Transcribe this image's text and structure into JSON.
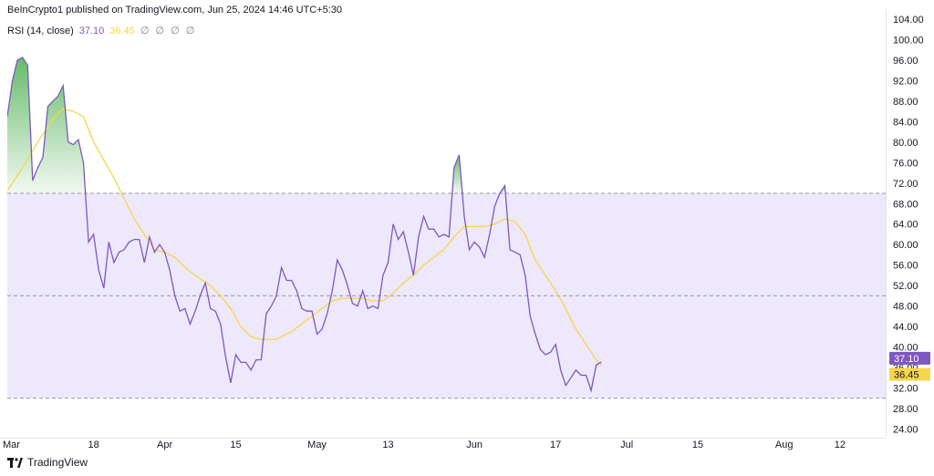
{
  "publisher": "BeInCrypto1 published on TradingView.com, Jun 25, 2024 14:46 UTC+5:30",
  "legend": {
    "indicator": "RSI (14, close)",
    "rsi_value": "37.10",
    "ma_value": "36.45",
    "extras": "∅ ∅ ∅ ∅"
  },
  "footer": {
    "brand": "TradingView"
  },
  "colors": {
    "rsi_line": "#7e57c2",
    "ma_line": "#f7d54a",
    "band_fill": "#ede8fb",
    "overbought_fill": "#4caf50",
    "rsi_badge": "#7e57c2",
    "ma_badge": "#f7d54a"
  },
  "chart_data": {
    "type": "line",
    "title": "",
    "xlabel": "",
    "ylabel": "",
    "ylim": [
      22.3,
      104
    ],
    "xlim": [
      0,
      173
    ],
    "x_unit": "days from Mar 1, 2024",
    "y_ticks": [
      "104.00",
      "100.00",
      "96.00",
      "92.00",
      "88.00",
      "84.00",
      "80.00",
      "76.00",
      "72.00",
      "68.00",
      "64.00",
      "60.00",
      "56.00",
      "52.00",
      "48.00",
      "44.00",
      "40.00",
      "36.00",
      "32.00",
      "28.00",
      "24.00"
    ],
    "x_ticks": [
      {
        "x": 0,
        "label": "Mar"
      },
      {
        "x": 17,
        "label": "18"
      },
      {
        "x": 31,
        "label": "Apr"
      },
      {
        "x": 45,
        "label": "15"
      },
      {
        "x": 61,
        "label": "May"
      },
      {
        "x": 75,
        "label": "13"
      },
      {
        "x": 92,
        "label": "Jun"
      },
      {
        "x": 108,
        "label": "17"
      },
      {
        "x": 122,
        "label": "Jul"
      },
      {
        "x": 136,
        "label": "15"
      },
      {
        "x": 153,
        "label": "Aug"
      },
      {
        "x": 164,
        "label": "12"
      }
    ],
    "levels": {
      "upper": 70,
      "middle": 50,
      "lower": 30
    },
    "series": [
      {
        "name": "RSI",
        "values": [
          [
            0,
            85
          ],
          [
            1,
            92
          ],
          [
            2,
            96
          ],
          [
            3,
            96.5
          ],
          [
            4,
            95
          ],
          [
            5,
            72.5
          ],
          [
            6,
            75
          ],
          [
            7,
            77
          ],
          [
            8,
            87
          ],
          [
            9,
            88
          ],
          [
            10,
            89
          ],
          [
            11,
            91
          ],
          [
            12,
            80
          ],
          [
            13,
            79.5
          ],
          [
            14,
            80.5
          ],
          [
            15,
            76
          ],
          [
            16,
            60.5
          ],
          [
            17,
            62
          ],
          [
            18,
            55
          ],
          [
            19,
            51.5
          ],
          [
            20,
            60.5
          ],
          [
            21,
            56.5
          ],
          [
            22,
            58.5
          ],
          [
            23,
            59
          ],
          [
            24,
            60.5
          ],
          [
            25,
            61
          ],
          [
            26,
            61
          ],
          [
            27,
            56.5
          ],
          [
            28,
            61.5
          ],
          [
            29,
            58.5
          ],
          [
            30,
            60
          ],
          [
            31,
            58.5
          ],
          [
            32,
            55
          ],
          [
            33,
            50
          ],
          [
            34,
            47
          ],
          [
            35,
            47.5
          ],
          [
            36,
            44.5
          ],
          [
            37,
            47
          ],
          [
            38,
            50
          ],
          [
            39,
            52.5
          ],
          [
            40,
            47.5
          ],
          [
            41,
            47
          ],
          [
            42,
            44.5
          ],
          [
            43,
            38
          ],
          [
            44,
            33
          ],
          [
            45,
            38.5
          ],
          [
            46,
            37
          ],
          [
            47,
            37
          ],
          [
            48,
            35.5
          ],
          [
            49,
            37.5
          ],
          [
            50,
            37.5
          ],
          [
            51,
            46.5
          ],
          [
            52,
            48
          ],
          [
            53,
            50
          ],
          [
            54,
            55.5
          ],
          [
            55,
            53
          ],
          [
            56,
            53
          ],
          [
            57,
            51
          ],
          [
            58,
            47.5
          ],
          [
            59,
            47
          ],
          [
            60,
            47
          ],
          [
            61,
            42.5
          ],
          [
            62,
            43.5
          ],
          [
            63,
            46.5
          ],
          [
            64,
            51
          ],
          [
            65,
            57
          ],
          [
            66,
            55
          ],
          [
            67,
            52
          ],
          [
            68,
            48.5
          ],
          [
            69,
            48
          ],
          [
            70,
            51
          ],
          [
            71,
            47.5
          ],
          [
            72,
            48
          ],
          [
            73,
            47.5
          ],
          [
            74,
            54
          ],
          [
            75,
            56.5
          ],
          [
            76,
            64
          ],
          [
            77,
            61
          ],
          [
            78,
            62.5
          ],
          [
            79,
            58.5
          ],
          [
            80,
            54
          ],
          [
            81,
            61.5
          ],
          [
            82,
            65.5
          ],
          [
            83,
            63
          ],
          [
            84,
            63
          ],
          [
            85,
            61.5
          ],
          [
            86,
            62
          ],
          [
            87,
            61.5
          ],
          [
            88,
            75
          ],
          [
            89,
            77.5
          ],
          [
            90,
            65.5
          ],
          [
            91,
            59
          ],
          [
            92,
            60.5
          ],
          [
            93,
            59.5
          ],
          [
            94,
            57.5
          ],
          [
            95,
            62
          ],
          [
            96,
            67.5
          ],
          [
            97,
            70
          ],
          [
            98,
            71.5
          ],
          [
            99,
            59
          ],
          [
            100,
            58.5
          ],
          [
            101,
            58
          ],
          [
            102,
            54
          ],
          [
            103,
            46
          ],
          [
            104,
            42.5
          ],
          [
            105,
            39.5
          ],
          [
            106,
            38.5
          ],
          [
            107,
            39
          ],
          [
            108,
            40.5
          ],
          [
            109,
            35.5
          ],
          [
            110,
            32.5
          ],
          [
            111,
            34
          ],
          [
            112,
            35.5
          ],
          [
            113,
            34.5
          ],
          [
            114,
            34.5
          ],
          [
            115,
            31.5
          ],
          [
            116,
            36.5
          ],
          [
            117,
            37.1
          ]
        ]
      },
      {
        "name": "RSI-based MA",
        "values": [
          [
            0,
            70.5
          ],
          [
            3,
            75
          ],
          [
            6,
            80
          ],
          [
            9,
            84.5
          ],
          [
            11,
            86.5
          ],
          [
            13,
            86
          ],
          [
            15,
            85
          ],
          [
            17,
            80
          ],
          [
            19,
            76.5
          ],
          [
            21,
            73
          ],
          [
            23,
            69
          ],
          [
            25,
            65
          ],
          [
            27,
            62
          ],
          [
            29,
            59
          ],
          [
            31,
            58.5
          ],
          [
            33,
            57.5
          ],
          [
            35,
            55.5
          ],
          [
            37,
            54
          ],
          [
            40,
            52
          ],
          [
            42,
            50
          ],
          [
            44,
            47.5
          ],
          [
            46,
            44
          ],
          [
            48,
            42
          ],
          [
            50,
            41.5
          ],
          [
            53,
            41.5
          ],
          [
            56,
            43
          ],
          [
            58,
            44.5
          ],
          [
            60,
            46
          ],
          [
            62,
            47.5
          ],
          [
            64,
            49
          ],
          [
            66,
            49.5
          ],
          [
            68,
            49.5
          ],
          [
            70,
            49.5
          ],
          [
            72,
            49
          ],
          [
            74,
            49
          ],
          [
            76,
            50.5
          ],
          [
            78,
            52.5
          ],
          [
            80,
            54
          ],
          [
            82,
            56
          ],
          [
            84,
            57.5
          ],
          [
            86,
            59
          ],
          [
            88,
            61.5
          ],
          [
            90,
            63.5
          ],
          [
            92,
            63.5
          ],
          [
            94,
            63.5
          ],
          [
            96,
            64
          ],
          [
            98,
            65
          ],
          [
            100,
            64.5
          ],
          [
            102,
            62
          ],
          [
            104,
            57
          ],
          [
            106,
            54
          ],
          [
            108,
            51
          ],
          [
            110,
            47.5
          ],
          [
            112,
            43.5
          ],
          [
            114,
            40.5
          ],
          [
            116,
            37.5
          ],
          [
            117,
            36.45
          ]
        ]
      }
    ]
  }
}
